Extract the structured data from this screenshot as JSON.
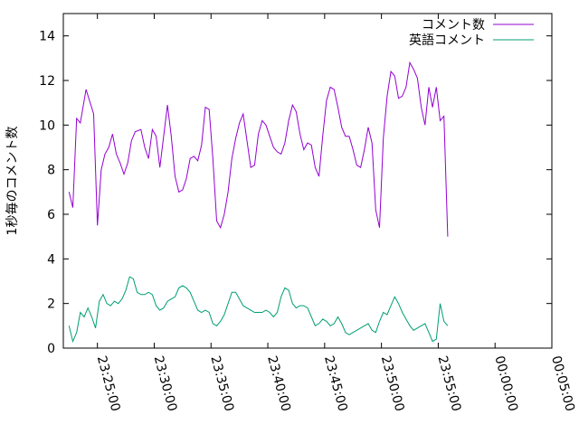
{
  "chart_data": {
    "type": "line",
    "xlabel": "",
    "ylabel": "1秒毎のコメント数",
    "xlim": [
      "23:22:00",
      "00:05:00"
    ],
    "ylim": [
      0,
      15
    ],
    "grid": false,
    "legend_position": "top-right",
    "x_ticks": [
      "23:25:00",
      "23:30:00",
      "23:35:00",
      "23:40:00",
      "23:45:00",
      "23:50:00",
      "23:55:00",
      "00:00:00",
      "00:05:00"
    ],
    "y_ticks": [
      0,
      2,
      4,
      6,
      8,
      10,
      12,
      14
    ],
    "series": [
      {
        "name": "コメント数",
        "color": "#9400d3",
        "points": [
          [
            "23:22:30",
            7.0
          ],
          [
            "23:22:50",
            6.3
          ],
          [
            "23:23:10",
            10.3
          ],
          [
            "23:23:30",
            10.1
          ],
          [
            "23:24:00",
            11.6
          ],
          [
            "23:24:40",
            10.5
          ],
          [
            "23:25:00",
            5.5
          ],
          [
            "23:25:20",
            8.0
          ],
          [
            "23:25:40",
            8.7
          ],
          [
            "23:26:00",
            9.0
          ],
          [
            "23:26:20",
            9.6
          ],
          [
            "23:26:40",
            8.7
          ],
          [
            "23:27:00",
            8.3
          ],
          [
            "23:27:20",
            7.8
          ],
          [
            "23:27:40",
            8.3
          ],
          [
            "23:28:00",
            9.3
          ],
          [
            "23:28:20",
            9.7
          ],
          [
            "23:28:50",
            9.8
          ],
          [
            "23:29:10",
            9.0
          ],
          [
            "23:29:30",
            8.5
          ],
          [
            "23:29:50",
            9.8
          ],
          [
            "23:30:10",
            9.5
          ],
          [
            "23:30:30",
            8.1
          ],
          [
            "23:30:50",
            9.5
          ],
          [
            "23:31:10",
            10.9
          ],
          [
            "23:31:30",
            9.5
          ],
          [
            "23:31:50",
            7.7
          ],
          [
            "23:32:10",
            7.0
          ],
          [
            "23:32:30",
            7.1
          ],
          [
            "23:32:50",
            7.6
          ],
          [
            "23:33:10",
            8.5
          ],
          [
            "23:33:30",
            8.6
          ],
          [
            "23:33:50",
            8.4
          ],
          [
            "23:34:10",
            9.1
          ],
          [
            "23:34:30",
            10.8
          ],
          [
            "23:34:50",
            10.7
          ],
          [
            "23:35:10",
            8.5
          ],
          [
            "23:35:30",
            5.7
          ],
          [
            "23:35:50",
            5.4
          ],
          [
            "23:36:10",
            6.0
          ],
          [
            "23:36:30",
            7.0
          ],
          [
            "23:36:50",
            8.5
          ],
          [
            "23:37:10",
            9.4
          ],
          [
            "23:37:30",
            10.1
          ],
          [
            "23:37:50",
            10.5
          ],
          [
            "23:38:10",
            9.3
          ],
          [
            "23:38:30",
            8.1
          ],
          [
            "23:38:50",
            8.2
          ],
          [
            "23:39:10",
            9.6
          ],
          [
            "23:39:30",
            10.2
          ],
          [
            "23:39:50",
            10.0
          ],
          [
            "23:40:10",
            9.5
          ],
          [
            "23:40:30",
            9.0
          ],
          [
            "23:40:50",
            8.8
          ],
          [
            "23:41:10",
            8.7
          ],
          [
            "23:41:30",
            9.2
          ],
          [
            "23:41:50",
            10.2
          ],
          [
            "23:42:10",
            10.9
          ],
          [
            "23:42:30",
            10.6
          ],
          [
            "23:42:50",
            9.6
          ],
          [
            "23:43:10",
            8.9
          ],
          [
            "23:43:30",
            9.2
          ],
          [
            "23:43:50",
            9.1
          ],
          [
            "23:44:10",
            8.1
          ],
          [
            "23:44:30",
            7.7
          ],
          [
            "23:44:50",
            9.5
          ],
          [
            "23:45:10",
            11.1
          ],
          [
            "23:45:30",
            11.7
          ],
          [
            "23:45:50",
            11.6
          ],
          [
            "23:46:10",
            10.8
          ],
          [
            "23:46:30",
            9.9
          ],
          [
            "23:46:50",
            9.5
          ],
          [
            "23:47:10",
            9.5
          ],
          [
            "23:47:30",
            8.9
          ],
          [
            "23:47:50",
            8.2
          ],
          [
            "23:48:10",
            8.1
          ],
          [
            "23:48:30",
            8.9
          ],
          [
            "23:48:50",
            9.9
          ],
          [
            "23:49:10",
            9.2
          ],
          [
            "23:49:30",
            6.2
          ],
          [
            "23:49:50",
            5.4
          ],
          [
            "23:50:10",
            9.4
          ],
          [
            "23:50:30",
            11.3
          ],
          [
            "23:50:50",
            12.4
          ],
          [
            "23:51:10",
            12.2
          ],
          [
            "23:51:30",
            11.2
          ],
          [
            "23:51:50",
            11.3
          ],
          [
            "23:52:10",
            11.7
          ],
          [
            "23:52:30",
            12.8
          ],
          [
            "23:52:50",
            12.5
          ],
          [
            "23:53:10",
            12.1
          ],
          [
            "23:53:30",
            10.8
          ],
          [
            "23:53:50",
            10.0
          ],
          [
            "23:54:10",
            11.7
          ],
          [
            "23:54:30",
            10.8
          ],
          [
            "23:54:50",
            11.7
          ],
          [
            "23:55:10",
            10.2
          ],
          [
            "23:55:30",
            10.4
          ],
          [
            "23:55:50",
            5.0
          ]
        ]
      },
      {
        "name": "英語コメント",
        "color": "#009e73",
        "points": [
          [
            "23:22:30",
            1.0
          ],
          [
            "23:22:50",
            0.3
          ],
          [
            "23:23:10",
            0.7
          ],
          [
            "23:23:30",
            1.6
          ],
          [
            "23:23:50",
            1.4
          ],
          [
            "23:24:10",
            1.8
          ],
          [
            "23:24:30",
            1.4
          ],
          [
            "23:24:50",
            0.9
          ],
          [
            "23:25:10",
            2.1
          ],
          [
            "23:25:30",
            2.4
          ],
          [
            "23:25:50",
            2.0
          ],
          [
            "23:26:10",
            1.9
          ],
          [
            "23:26:30",
            2.1
          ],
          [
            "23:26:50",
            2.0
          ],
          [
            "23:27:10",
            2.2
          ],
          [
            "23:27:30",
            2.6
          ],
          [
            "23:27:50",
            3.2
          ],
          [
            "23:28:10",
            3.1
          ],
          [
            "23:28:30",
            2.5
          ],
          [
            "23:28:50",
            2.4
          ],
          [
            "23:29:10",
            2.4
          ],
          [
            "23:29:30",
            2.5
          ],
          [
            "23:29:50",
            2.4
          ],
          [
            "23:30:10",
            1.9
          ],
          [
            "23:30:30",
            1.7
          ],
          [
            "23:30:50",
            1.8
          ],
          [
            "23:31:10",
            2.1
          ],
          [
            "23:31:30",
            2.2
          ],
          [
            "23:31:50",
            2.3
          ],
          [
            "23:32:10",
            2.7
          ],
          [
            "23:32:30",
            2.8
          ],
          [
            "23:32:50",
            2.7
          ],
          [
            "23:33:10",
            2.5
          ],
          [
            "23:33:30",
            2.1
          ],
          [
            "23:33:50",
            1.7
          ],
          [
            "23:34:10",
            1.6
          ],
          [
            "23:34:30",
            1.7
          ],
          [
            "23:34:50",
            1.6
          ],
          [
            "23:35:10",
            1.1
          ],
          [
            "23:35:30",
            1.0
          ],
          [
            "23:35:50",
            1.2
          ],
          [
            "23:36:10",
            1.5
          ],
          [
            "23:36:30",
            2.0
          ],
          [
            "23:36:50",
            2.5
          ],
          [
            "23:37:10",
            2.5
          ],
          [
            "23:37:30",
            2.2
          ],
          [
            "23:37:50",
            1.9
          ],
          [
            "23:38:10",
            1.8
          ],
          [
            "23:38:30",
            1.7
          ],
          [
            "23:38:50",
            1.6
          ],
          [
            "23:39:10",
            1.6
          ],
          [
            "23:39:30",
            1.6
          ],
          [
            "23:39:50",
            1.7
          ],
          [
            "23:40:10",
            1.6
          ],
          [
            "23:40:30",
            1.4
          ],
          [
            "23:40:50",
            1.6
          ],
          [
            "23:41:10",
            2.3
          ],
          [
            "23:41:30",
            2.7
          ],
          [
            "23:41:50",
            2.6
          ],
          [
            "23:42:10",
            2.0
          ],
          [
            "23:42:30",
            1.8
          ],
          [
            "23:42:50",
            1.9
          ],
          [
            "23:43:10",
            1.9
          ],
          [
            "23:43:30",
            1.8
          ],
          [
            "23:43:50",
            1.4
          ],
          [
            "23:44:10",
            1.0
          ],
          [
            "23:44:30",
            1.1
          ],
          [
            "23:44:50",
            1.3
          ],
          [
            "23:45:10",
            1.2
          ],
          [
            "23:45:30",
            1.0
          ],
          [
            "23:45:50",
            1.1
          ],
          [
            "23:46:10",
            1.4
          ],
          [
            "23:46:30",
            1.1
          ],
          [
            "23:46:50",
            0.7
          ],
          [
            "23:47:10",
            0.6
          ],
          [
            "23:47:30",
            0.7
          ],
          [
            "23:47:50",
            0.8
          ],
          [
            "23:48:10",
            0.9
          ],
          [
            "23:48:30",
            1.0
          ],
          [
            "23:48:50",
            1.1
          ],
          [
            "23:49:10",
            0.8
          ],
          [
            "23:49:30",
            0.7
          ],
          [
            "23:49:50",
            1.2
          ],
          [
            "23:50:10",
            1.6
          ],
          [
            "23:50:30",
            1.5
          ],
          [
            "23:50:50",
            1.9
          ],
          [
            "23:51:10",
            2.3
          ],
          [
            "23:51:30",
            2.0
          ],
          [
            "23:51:50",
            1.6
          ],
          [
            "23:52:10",
            1.3
          ],
          [
            "23:52:30",
            1.0
          ],
          [
            "23:52:50",
            0.8
          ],
          [
            "23:53:10",
            0.9
          ],
          [
            "23:53:30",
            1.0
          ],
          [
            "23:53:50",
            1.1
          ],
          [
            "23:54:10",
            0.7
          ],
          [
            "23:54:30",
            0.3
          ],
          [
            "23:54:50",
            0.4
          ],
          [
            "23:55:10",
            2.0
          ],
          [
            "23:55:30",
            1.2
          ],
          [
            "23:55:50",
            1.0
          ]
        ]
      }
    ]
  }
}
